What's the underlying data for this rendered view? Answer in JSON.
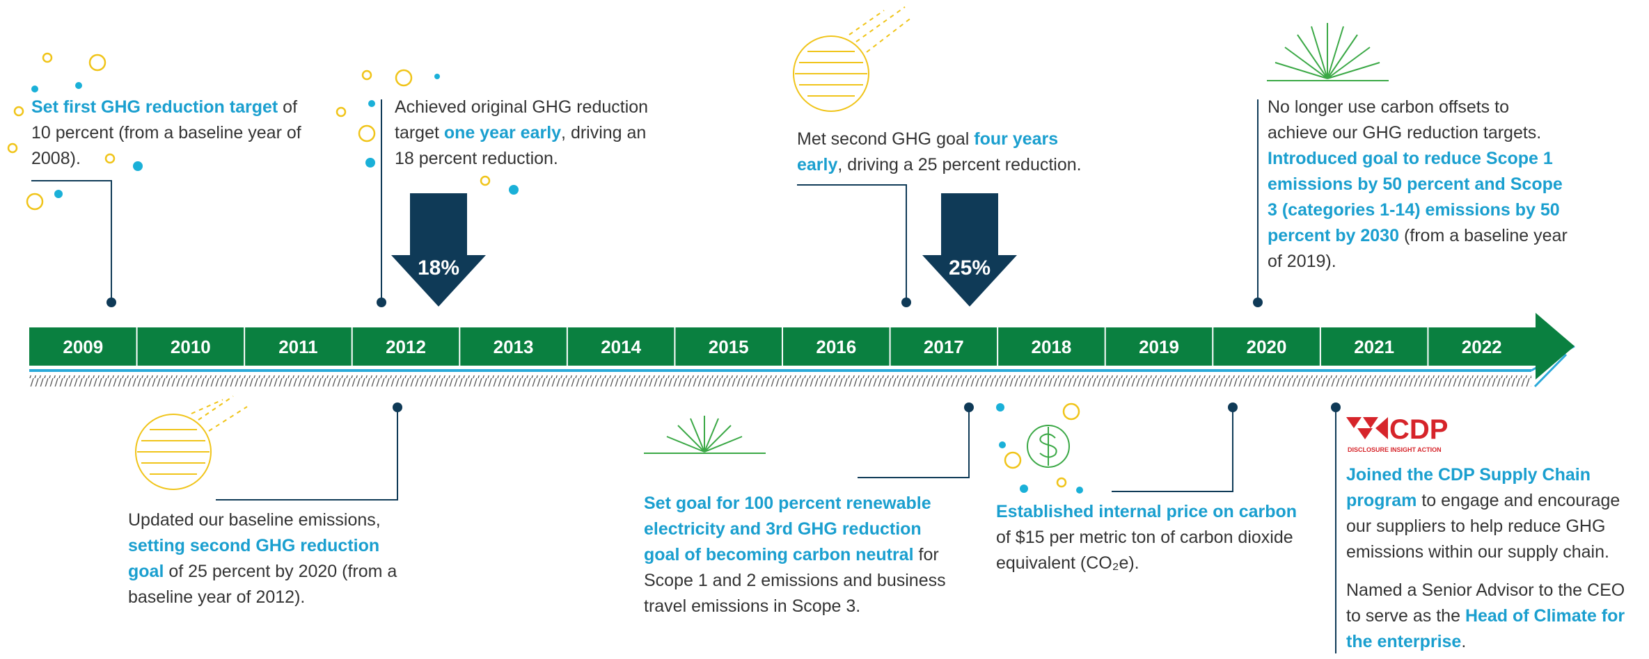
{
  "timeline": {
    "years": [
      "2009",
      "2010",
      "2011",
      "2012",
      "2013",
      "2014",
      "2015",
      "2016",
      "2017",
      "2018",
      "2019",
      "2020",
      "2021",
      "2022"
    ],
    "arrows": [
      {
        "label": "18%"
      },
      {
        "label": "25%"
      }
    ],
    "logo": {
      "name": "CDP",
      "tagline": "DISCLOSURE INSIGHT ACTION"
    },
    "events": [
      {
        "paragraphs": [
          [
            {
              "text": "Set first GHG reduction target",
              "bold": true
            },
            {
              "text": " of 10 percent (from a baseline year of 2008).",
              "bold": false
            }
          ]
        ]
      },
      {
        "paragraphs": [
          [
            {
              "text": "Achieved original GHG reduction target ",
              "bold": false
            },
            {
              "text": "one year early",
              "bold": true
            },
            {
              "text": ", driving an 18 percent reduction.",
              "bold": false
            }
          ]
        ]
      },
      {
        "paragraphs": [
          [
            {
              "text": "Met second GHG goal ",
              "bold": false
            },
            {
              "text": "four years early",
              "bold": true
            },
            {
              "text": ", driving a 25 percent reduction.",
              "bold": false
            }
          ]
        ]
      },
      {
        "paragraphs": [
          [
            {
              "text": "No longer use carbon offsets to achieve our GHG reduction targets. ",
              "bold": false
            },
            {
              "text": "Introduced goal to reduce Scope 1 emissions by 50 percent and Scope 3 (categories 1-14) emissions by 50 percent by 2030",
              "bold": true
            },
            {
              "text": " (from a baseline year of 2019).",
              "bold": false
            }
          ]
        ]
      },
      {
        "paragraphs": [
          [
            {
              "text": "Updated our baseline emissions, ",
              "bold": false
            },
            {
              "text": "setting second GHG reduction goal",
              "bold": true
            },
            {
              "text": " of 25 percent by 2020 (from a baseline year of 2012).",
              "bold": false
            }
          ]
        ]
      },
      {
        "paragraphs": [
          [
            {
              "text": "Set goal for 100 percent renewable electricity and 3rd GHG reduction goal of becoming carbon neutral",
              "bold": true
            },
            {
              "text": " for Scope 1 and 2 emissions and business travel emissions in Scope 3.",
              "bold": false
            }
          ]
        ]
      },
      {
        "paragraphs": [
          [
            {
              "text": "Established internal price on carbon",
              "bold": true
            },
            {
              "text": " of $15 per metric ton of carbon dioxide equivalent (CO₂e).",
              "bold": false
            }
          ]
        ]
      },
      {
        "paragraphs": [
          [
            {
              "text": "Joined the CDP Supply Chain program",
              "bold": true
            },
            {
              "text": " to engage and encourage our suppliers to help reduce GHG emissions within our supply chain.",
              "bold": false
            }
          ],
          [
            {
              "text": "Named a Senior Advisor to the CEO to serve as the ",
              "bold": false
            },
            {
              "text": "Head of Climate for the enterprise",
              "bold": true
            },
            {
              "text": ".",
              "bold": false
            }
          ]
        ]
      }
    ]
  }
}
